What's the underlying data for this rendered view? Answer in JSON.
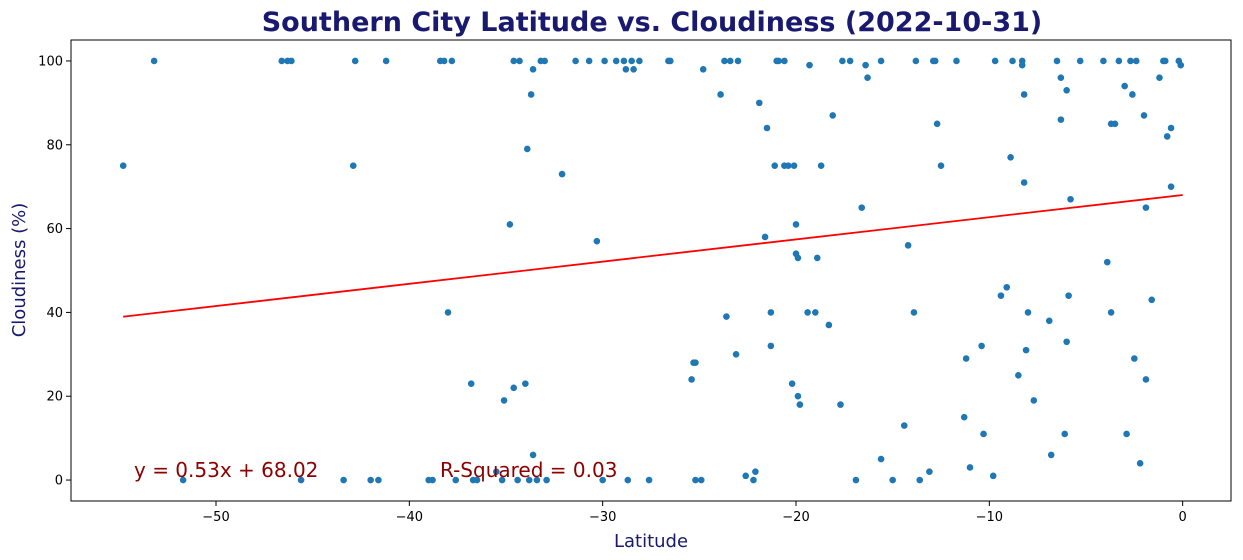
{
  "chart_data": {
    "type": "scatter",
    "title": "Southern City Latitude vs. Cloudiness (2022-10-31)",
    "xlabel": "Latitude",
    "ylabel": "Cloudiness (%)",
    "xlim": [
      -57.5,
      2.5
    ],
    "ylim": [
      -5,
      105
    ],
    "xticks": [
      -50,
      -40,
      -30,
      -20,
      -10,
      0
    ],
    "xtick_labels": [
      "−50",
      "−40",
      "−30",
      "−20",
      "−10",
      "0"
    ],
    "yticks": [
      0,
      20,
      40,
      60,
      80,
      100
    ],
    "grid": false,
    "marker_color": "#1f77b4",
    "line_color": "#ff0000",
    "annotation_color": "#8b0000",
    "title_color": "#191970",
    "regression": {
      "slope": 0.53,
      "intercept": 68.02,
      "x_range": [
        -54.8,
        0
      ],
      "equation_text": "y = 0.53x + 68.02",
      "r_squared_text": "R-Squared = 0.03"
    },
    "points": [
      [
        -54.8,
        75
      ],
      [
        -53.2,
        100
      ],
      [
        -51.7,
        0
      ],
      [
        -46.6,
        100
      ],
      [
        -46.3,
        100
      ],
      [
        -46.1,
        100
      ],
      [
        -45.6,
        0
      ],
      [
        -43.4,
        0
      ],
      [
        -42.9,
        75
      ],
      [
        -42.8,
        100
      ],
      [
        -42.0,
        0
      ],
      [
        -41.6,
        0
      ],
      [
        -41.2,
        100
      ],
      [
        -39.0,
        0
      ],
      [
        -38.8,
        0
      ],
      [
        -38.4,
        100
      ],
      [
        -38.2,
        100
      ],
      [
        -38.0,
        40
      ],
      [
        -37.8,
        100
      ],
      [
        -37.6,
        0
      ],
      [
        -36.8,
        23
      ],
      [
        -36.7,
        0
      ],
      [
        -36.5,
        0
      ],
      [
        -35.5,
        2
      ],
      [
        -35.2,
        0
      ],
      [
        -35.1,
        19
      ],
      [
        -34.8,
        61
      ],
      [
        -34.6,
        22
      ],
      [
        -34.6,
        100
      ],
      [
        -34.4,
        0
      ],
      [
        -34.3,
        100
      ],
      [
        -34.0,
        23
      ],
      [
        -33.9,
        79
      ],
      [
        -33.8,
        0
      ],
      [
        -33.7,
        92
      ],
      [
        -33.6,
        6
      ],
      [
        -33.6,
        98
      ],
      [
        -33.4,
        0
      ],
      [
        -33.2,
        100
      ],
      [
        -33.0,
        100
      ],
      [
        -32.9,
        0
      ],
      [
        -32.1,
        73
      ],
      [
        -31.4,
        100
      ],
      [
        -30.7,
        100
      ],
      [
        -30.3,
        57
      ],
      [
        -30.0,
        0
      ],
      [
        -29.9,
        100
      ],
      [
        -29.3,
        100
      ],
      [
        -28.9,
        100
      ],
      [
        -28.8,
        98
      ],
      [
        -28.7,
        0
      ],
      [
        -28.5,
        100
      ],
      [
        -28.4,
        98
      ],
      [
        -28.1,
        100
      ],
      [
        -27.6,
        0
      ],
      [
        -26.6,
        100
      ],
      [
        -26.5,
        100
      ],
      [
        -25.4,
        24
      ],
      [
        -25.3,
        28
      ],
      [
        -25.2,
        28
      ],
      [
        -25.2,
        0
      ],
      [
        -24.9,
        0
      ],
      [
        -24.8,
        98
      ],
      [
        -23.9,
        92
      ],
      [
        -23.7,
        100
      ],
      [
        -23.6,
        39
      ],
      [
        -23.4,
        100
      ],
      [
        -23.1,
        30
      ],
      [
        -23.0,
        100
      ],
      [
        -22.6,
        1
      ],
      [
        -22.2,
        0
      ],
      [
        -22.1,
        2
      ],
      [
        -21.9,
        90
      ],
      [
        -21.6,
        58
      ],
      [
        -21.5,
        84
      ],
      [
        -21.3,
        40
      ],
      [
        -21.3,
        32
      ],
      [
        -21.1,
        75
      ],
      [
        -21.0,
        100
      ],
      [
        -20.9,
        100
      ],
      [
        -20.6,
        100
      ],
      [
        -20.6,
        75
      ],
      [
        -20.4,
        75
      ],
      [
        -20.2,
        23
      ],
      [
        -20.1,
        75
      ],
      [
        -20.0,
        61
      ],
      [
        -20.0,
        54
      ],
      [
        -19.9,
        53
      ],
      [
        -19.9,
        20
      ],
      [
        -19.8,
        18
      ],
      [
        -19.4,
        40
      ],
      [
        -19.3,
        99
      ],
      [
        -19.0,
        40
      ],
      [
        -18.9,
        53
      ],
      [
        -18.7,
        75
      ],
      [
        -18.3,
        37
      ],
      [
        -18.1,
        87
      ],
      [
        -17.7,
        18
      ],
      [
        -17.6,
        100
      ],
      [
        -17.2,
        100
      ],
      [
        -16.9,
        0
      ],
      [
        -16.6,
        65
      ],
      [
        -16.4,
        99
      ],
      [
        -16.3,
        96
      ],
      [
        -15.6,
        100
      ],
      [
        -15.6,
        5
      ],
      [
        -15.0,
        0
      ],
      [
        -14.4,
        13
      ],
      [
        -14.2,
        56
      ],
      [
        -13.9,
        40
      ],
      [
        -13.8,
        100
      ],
      [
        -13.6,
        0
      ],
      [
        -13.1,
        2
      ],
      [
        -12.9,
        100
      ],
      [
        -12.8,
        100
      ],
      [
        -12.7,
        85
      ],
      [
        -12.5,
        75
      ],
      [
        -11.7,
        100
      ],
      [
        -11.3,
        15
      ],
      [
        -11.2,
        29
      ],
      [
        -11.0,
        3
      ],
      [
        -10.4,
        32
      ],
      [
        -10.3,
        11
      ],
      [
        -9.8,
        1
      ],
      [
        -9.7,
        100
      ],
      [
        -9.4,
        44
      ],
      [
        -9.1,
        46
      ],
      [
        -8.9,
        77
      ],
      [
        -8.8,
        100
      ],
      [
        -8.5,
        25
      ],
      [
        -8.3,
        100
      ],
      [
        -8.3,
        99
      ],
      [
        -8.2,
        92
      ],
      [
        -8.2,
        71
      ],
      [
        -8.1,
        31
      ],
      [
        -8.0,
        40
      ],
      [
        -7.7,
        19
      ],
      [
        -6.9,
        38
      ],
      [
        -6.8,
        6
      ],
      [
        -6.5,
        100
      ],
      [
        -6.3,
        96
      ],
      [
        -6.3,
        86
      ],
      [
        -6.1,
        11
      ],
      [
        -6.0,
        33
      ],
      [
        -6.0,
        93
      ],
      [
        -5.9,
        44
      ],
      [
        -5.8,
        67
      ],
      [
        -5.3,
        100
      ],
      [
        -4.1,
        100
      ],
      [
        -3.9,
        52
      ],
      [
        -3.7,
        40
      ],
      [
        -3.7,
        85
      ],
      [
        -3.5,
        85
      ],
      [
        -3.3,
        100
      ],
      [
        -3.0,
        94
      ],
      [
        -2.9,
        11
      ],
      [
        -2.7,
        100
      ],
      [
        -2.6,
        92
      ],
      [
        -2.5,
        29
      ],
      [
        -2.4,
        100
      ],
      [
        -2.2,
        4
      ],
      [
        -2.0,
        87
      ],
      [
        -1.9,
        65
      ],
      [
        -1.9,
        24
      ],
      [
        -1.6,
        43
      ],
      [
        -1.2,
        96
      ],
      [
        -1.0,
        100
      ],
      [
        -0.9,
        100
      ],
      [
        -0.8,
        82
      ],
      [
        -0.6,
        84
      ],
      [
        -0.6,
        70
      ],
      [
        -0.2,
        100
      ],
      [
        -0.1,
        99
      ]
    ]
  }
}
